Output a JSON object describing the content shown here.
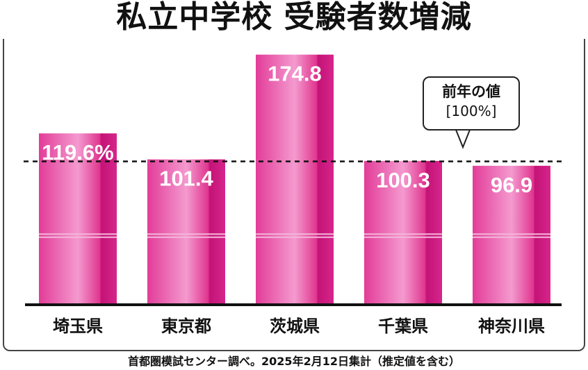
{
  "title": "私立中学校 受験者数増減",
  "source_note": "首都圏模試センター調べ。2025年2月12日集計（推定値を含む）",
  "callout": {
    "line1": "前年の値",
    "line2": "[100%]"
  },
  "colors": {
    "bar_main": "#d41c86",
    "bar_light": "#f6a9d6",
    "reference_line": "#111111",
    "axis": "#111111"
  },
  "chart_data": {
    "type": "bar",
    "categories": [
      "埼玉県",
      "東京都",
      "茨城県",
      "千葉県",
      "神奈川県"
    ],
    "values": [
      119.6,
      101.4,
      174.8,
      100.3,
      96.9
    ],
    "value_labels": [
      "119.6%",
      "101.4",
      "174.8",
      "100.3",
      "96.9"
    ],
    "unit": "%",
    "reference_value": 100,
    "ylim": [
      0,
      180
    ],
    "grid": false,
    "legend": "none"
  }
}
